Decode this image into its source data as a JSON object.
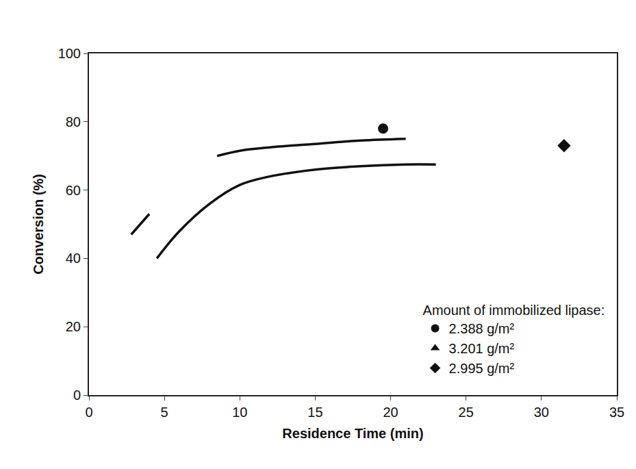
{
  "chart_data": {
    "type": "scatter",
    "x_label": "Residence Time (min)",
    "y_label": "Conversion (%)",
    "legend_title": "Amount of immobilized lipase:",
    "xlim": [
      0,
      35
    ],
    "xticks": [
      0,
      5,
      10,
      15,
      20,
      25,
      30,
      35
    ],
    "ylim": [
      0,
      100
    ],
    "yticks": [
      0,
      20,
      40,
      60,
      80,
      100
    ],
    "grid": false,
    "legend": "lower right",
    "series": [
      {
        "name": "2.388 g/m²",
        "type": "scatter",
        "marker": "circle",
        "color": "#111111",
        "x": [
          19.5
        ],
        "values": [
          78
        ]
      },
      {
        "name": "3.201 g/m²",
        "type": "scatter",
        "marker": "triangle-up",
        "color": "#111111",
        "x": [
          null
        ],
        "values": [
          null
        ]
      },
      {
        "name": "2.995 g/m²",
        "type": "scatter",
        "marker": "diamond",
        "color": "#111111",
        "x": [
          31.5
        ],
        "values": [
          73
        ]
      },
      {
        "type": "line",
        "line_style": "solid",
        "color": "#111111",
        "x": [
          2.8,
          3.4,
          4.0
        ],
        "values": [
          47,
          50,
          53
        ]
      },
      {
        "type": "line",
        "line_style": "solid",
        "color": "#111111",
        "x": [
          8.5,
          10,
          12,
          15,
          18,
          21
        ],
        "values": [
          70,
          71.5,
          72.5,
          73.5,
          74.5,
          75
        ]
      },
      {
        "type": "line",
        "line_style": "solid",
        "color": "#111111",
        "x": [
          4.5,
          6,
          8,
          10,
          12,
          15,
          18,
          21,
          23
        ],
        "values": [
          40,
          48,
          56,
          61.5,
          64,
          66,
          67,
          67.5,
          67.5
        ]
      }
    ]
  }
}
